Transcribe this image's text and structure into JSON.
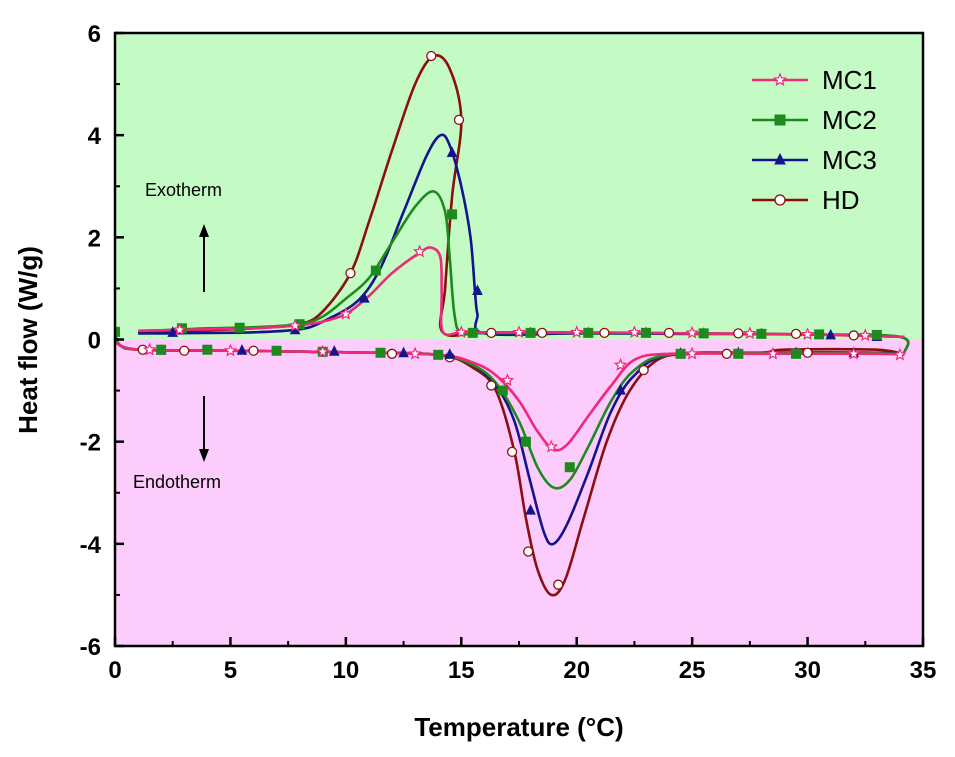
{
  "chart_data": {
    "type": "line",
    "xlabel": "Temperature (°C)",
    "ylabel": "Heat flow (W/g)",
    "xlim": [
      0,
      35
    ],
    "ylim": [
      -6,
      6
    ],
    "xticks": [
      0,
      5,
      10,
      15,
      20,
      25,
      30,
      35
    ],
    "yticks": [
      -6,
      -4,
      -2,
      0,
      2,
      4,
      6
    ],
    "xtick_labels": [
      "0",
      "5",
      "10",
      "15",
      "20",
      "25",
      "30",
      "35"
    ],
    "ytick_labels": [
      "-6",
      "-4",
      "-2",
      "0",
      "2",
      "4",
      "6"
    ],
    "regions": {
      "positive_color": "#c4fbc4",
      "negative_color": "#fcccfc"
    },
    "annotations": [
      {
        "text": "Exotherm",
        "arrow": "up"
      },
      {
        "text": "Endotherm",
        "arrow": "down"
      }
    ],
    "legend_position": "top-right",
    "series": [
      {
        "name": "MC1",
        "color": "#f0287a",
        "marker": "star",
        "cooling": [
          [
            34.2,
            0.05
          ],
          [
            30,
            0.1
          ],
          [
            25,
            0.12
          ],
          [
            20,
            0.14
          ],
          [
            16,
            0.14
          ],
          [
            15,
            0.14
          ],
          [
            14.2,
            0.15
          ],
          [
            14.15,
            0.9
          ],
          [
            14.1,
            1.6
          ],
          [
            13.7,
            1.8
          ],
          [
            13.2,
            1.7
          ],
          [
            12,
            1.3
          ],
          [
            11,
            0.85
          ],
          [
            10,
            0.5
          ],
          [
            9,
            0.35
          ],
          [
            8,
            0.28
          ],
          [
            6,
            0.22
          ],
          [
            4,
            0.2
          ],
          [
            2,
            0.18
          ],
          [
            1,
            0.17
          ]
        ],
        "heating": [
          [
            0,
            -0.05
          ],
          [
            1,
            -0.2
          ],
          [
            5,
            -0.22
          ],
          [
            10,
            -0.25
          ],
          [
            14,
            -0.3
          ],
          [
            15.5,
            -0.45
          ],
          [
            16.5,
            -0.7
          ],
          [
            17.5,
            -1.2
          ],
          [
            18.3,
            -1.8
          ],
          [
            19,
            -2.15
          ],
          [
            19.6,
            -2.05
          ],
          [
            20.5,
            -1.5
          ],
          [
            21.5,
            -0.9
          ],
          [
            22.5,
            -0.4
          ],
          [
            24,
            -0.28
          ],
          [
            28,
            -0.28
          ],
          [
            33,
            -0.28
          ],
          [
            34.2,
            -0.3
          ]
        ],
        "marker_points": [
          [
            2.8,
            0.19
          ],
          [
            7.8,
            0.27
          ],
          [
            10,
            0.5
          ],
          [
            13.2,
            1.72
          ],
          [
            15,
            0.14
          ],
          [
            17.5,
            0.14
          ],
          [
            20,
            0.14
          ],
          [
            22.5,
            0.14
          ],
          [
            25,
            0.13
          ],
          [
            27.5,
            0.12
          ],
          [
            30,
            0.1
          ],
          [
            32.5,
            0.08
          ],
          [
            34,
            -0.3
          ],
          [
            1.5,
            -0.2
          ],
          [
            5,
            -0.22
          ],
          [
            9,
            -0.24
          ],
          [
            13,
            -0.28
          ],
          [
            17,
            -0.8
          ],
          [
            18.9,
            -2.1
          ],
          [
            21.9,
            -0.5
          ],
          [
            25,
            -0.28
          ],
          [
            28.5,
            -0.28
          ],
          [
            32,
            -0.28
          ]
        ]
      },
      {
        "name": "MC2",
        "color": "#1e8a1e",
        "marker": "square",
        "cooling": [
          [
            34.2,
            -0.25
          ],
          [
            34,
            0.05
          ],
          [
            30,
            0.1
          ],
          [
            25,
            0.12
          ],
          [
            20,
            0.13
          ],
          [
            16,
            0.13
          ],
          [
            15,
            0.13
          ],
          [
            14.7,
            0.5
          ],
          [
            14.5,
            1.6
          ],
          [
            14.3,
            2.5
          ],
          [
            13.8,
            2.9
          ],
          [
            13,
            2.6
          ],
          [
            12,
            1.9
          ],
          [
            11,
            1.2
          ],
          [
            10,
            0.8
          ],
          [
            9,
            0.45
          ],
          [
            8,
            0.3
          ],
          [
            6,
            0.24
          ],
          [
            4,
            0.22
          ],
          [
            2,
            0.18
          ],
          [
            1,
            0.17
          ]
        ],
        "heating": [
          [
            0,
            0.15
          ],
          [
            0.2,
            -0.1
          ],
          [
            1,
            -0.2
          ],
          [
            5,
            -0.22
          ],
          [
            10,
            -0.25
          ],
          [
            14,
            -0.3
          ],
          [
            15.5,
            -0.5
          ],
          [
            16.5,
            -0.85
          ],
          [
            17.5,
            -1.6
          ],
          [
            18.3,
            -2.5
          ],
          [
            19,
            -2.9
          ],
          [
            19.7,
            -2.75
          ],
          [
            20.5,
            -2.1
          ],
          [
            21.5,
            -1.2
          ],
          [
            22.5,
            -0.6
          ],
          [
            24,
            -0.3
          ],
          [
            28,
            -0.27
          ],
          [
            33,
            -0.27
          ],
          [
            34.2,
            -0.3
          ]
        ],
        "marker_points": [
          [
            0,
            0.15
          ],
          [
            2.9,
            0.22
          ],
          [
            5.4,
            0.23
          ],
          [
            8,
            0.3
          ],
          [
            11.3,
            1.35
          ],
          [
            14.6,
            2.45
          ],
          [
            15.5,
            0.13
          ],
          [
            18,
            0.13
          ],
          [
            20.5,
            0.13
          ],
          [
            23,
            0.13
          ],
          [
            25.5,
            0.12
          ],
          [
            28,
            0.11
          ],
          [
            30.5,
            0.1
          ],
          [
            33,
            0.09
          ],
          [
            2,
            -0.2
          ],
          [
            4,
            -0.2
          ],
          [
            7,
            -0.22
          ],
          [
            9,
            -0.24
          ],
          [
            11.5,
            -0.26
          ],
          [
            14,
            -0.3
          ],
          [
            16.8,
            -1.0
          ],
          [
            17.8,
            -2.0
          ],
          [
            19.7,
            -2.5
          ],
          [
            24.5,
            -0.28
          ],
          [
            27,
            -0.28
          ],
          [
            29.5,
            -0.28
          ]
        ]
      },
      {
        "name": "MC3",
        "color": "#14148c",
        "marker": "triangle",
        "cooling": [
          [
            34.2,
            0.05
          ],
          [
            30,
            0.1
          ],
          [
            25,
            0.11
          ],
          [
            20,
            0.12
          ],
          [
            16,
            0.12
          ],
          [
            15.7,
            0.5
          ],
          [
            15.6,
            0.9
          ],
          [
            15.4,
            2.0
          ],
          [
            15,
            3.0
          ],
          [
            14.5,
            3.8
          ],
          [
            14.1,
            4.0
          ],
          [
            13.5,
            3.6
          ],
          [
            12.5,
            2.5
          ],
          [
            11.5,
            1.4
          ],
          [
            10.5,
            0.75
          ],
          [
            9,
            0.35
          ],
          [
            8,
            0.2
          ],
          [
            6,
            0.14
          ],
          [
            4,
            0.13
          ],
          [
            2,
            0.12
          ],
          [
            1,
            0.12
          ]
        ],
        "heating": [
          [
            0,
            -0.05
          ],
          [
            1,
            -0.2
          ],
          [
            5,
            -0.22
          ],
          [
            10,
            -0.25
          ],
          [
            14,
            -0.3
          ],
          [
            15.5,
            -0.5
          ],
          [
            16.5,
            -0.9
          ],
          [
            17.3,
            -1.6
          ],
          [
            18,
            -2.8
          ],
          [
            18.6,
            -3.8
          ],
          [
            19,
            -4.0
          ],
          [
            19.6,
            -3.6
          ],
          [
            20.5,
            -2.6
          ],
          [
            21.5,
            -1.4
          ],
          [
            22.5,
            -0.7
          ],
          [
            24,
            -0.3
          ],
          [
            28,
            -0.26
          ],
          [
            33,
            -0.26
          ],
          [
            34.2,
            -0.3
          ]
        ],
        "marker_points": [
          [
            2.5,
            0.13
          ],
          [
            7.8,
            0.18
          ],
          [
            10.8,
            0.8
          ],
          [
            14.6,
            3.65
          ],
          [
            15.7,
            0.95
          ],
          [
            18,
            0.12
          ],
          [
            20.5,
            0.12
          ],
          [
            23,
            0.12
          ],
          [
            25.5,
            0.11
          ],
          [
            28,
            0.1
          ],
          [
            31,
            0.08
          ],
          [
            33,
            0.05
          ],
          [
            2,
            -0.22
          ],
          [
            5.5,
            -0.22
          ],
          [
            9.5,
            -0.24
          ],
          [
            12.5,
            -0.27
          ],
          [
            14.5,
            -0.3
          ],
          [
            18,
            -3.35
          ],
          [
            21.9,
            -1.0
          ],
          [
            24.5,
            -0.28
          ],
          [
            27,
            -0.27
          ],
          [
            29.5,
            -0.27
          ],
          [
            32,
            -0.27
          ]
        ]
      },
      {
        "name": "HD",
        "color": "#8b0f0f",
        "marker": "circle",
        "cooling": [
          [
            34.2,
            -0.25
          ],
          [
            34,
            0.05
          ],
          [
            30,
            0.1
          ],
          [
            25,
            0.12
          ],
          [
            20,
            0.13
          ],
          [
            16,
            0.13
          ],
          [
            14.2,
            0.14
          ],
          [
            14.3,
            1.0
          ],
          [
            14.6,
            2.8
          ],
          [
            15,
            4.3
          ],
          [
            14.5,
            5.3
          ],
          [
            13.8,
            5.55
          ],
          [
            13,
            5.0
          ],
          [
            12,
            3.7
          ],
          [
            11,
            2.3
          ],
          [
            10.2,
            1.3
          ],
          [
            9,
            0.55
          ],
          [
            8,
            0.3
          ],
          [
            6,
            0.22
          ],
          [
            4,
            0.18
          ],
          [
            2,
            0.15
          ],
          [
            1,
            0.14
          ]
        ],
        "heating": [
          [
            0,
            -0.05
          ],
          [
            1,
            -0.2
          ],
          [
            5,
            -0.22
          ],
          [
            10,
            -0.25
          ],
          [
            14,
            -0.3
          ],
          [
            15.5,
            -0.55
          ],
          [
            16.5,
            -1.0
          ],
          [
            17.3,
            -2.2
          ],
          [
            17.8,
            -3.5
          ],
          [
            18.3,
            -4.5
          ],
          [
            18.9,
            -5.0
          ],
          [
            19.5,
            -4.7
          ],
          [
            20.3,
            -3.5
          ],
          [
            21.3,
            -2.0
          ],
          [
            22.3,
            -1.0
          ],
          [
            23.5,
            -0.4
          ],
          [
            25,
            -0.28
          ],
          [
            28,
            -0.26
          ],
          [
            29,
            -0.2
          ],
          [
            33,
            -0.2
          ],
          [
            34.2,
            -0.3
          ]
        ],
        "marker_points": [
          [
            10.2,
            1.3
          ],
          [
            13.7,
            5.55
          ],
          [
            14.9,
            4.3
          ],
          [
            16.3,
            0.13
          ],
          [
            18.5,
            0.13
          ],
          [
            21.2,
            0.13
          ],
          [
            24,
            0.13
          ],
          [
            27,
            0.12
          ],
          [
            29.5,
            0.11
          ],
          [
            32,
            0.08
          ],
          [
            1.2,
            -0.2
          ],
          [
            3,
            -0.22
          ],
          [
            6,
            -0.22
          ],
          [
            9,
            -0.24
          ],
          [
            12,
            -0.28
          ],
          [
            14.5,
            -0.35
          ],
          [
            16.3,
            -0.9
          ],
          [
            17.2,
            -2.2
          ],
          [
            17.9,
            -4.15
          ],
          [
            19.2,
            -4.8
          ],
          [
            22.9,
            -0.6
          ],
          [
            26.5,
            -0.28
          ],
          [
            30,
            -0.26
          ]
        ]
      }
    ]
  }
}
